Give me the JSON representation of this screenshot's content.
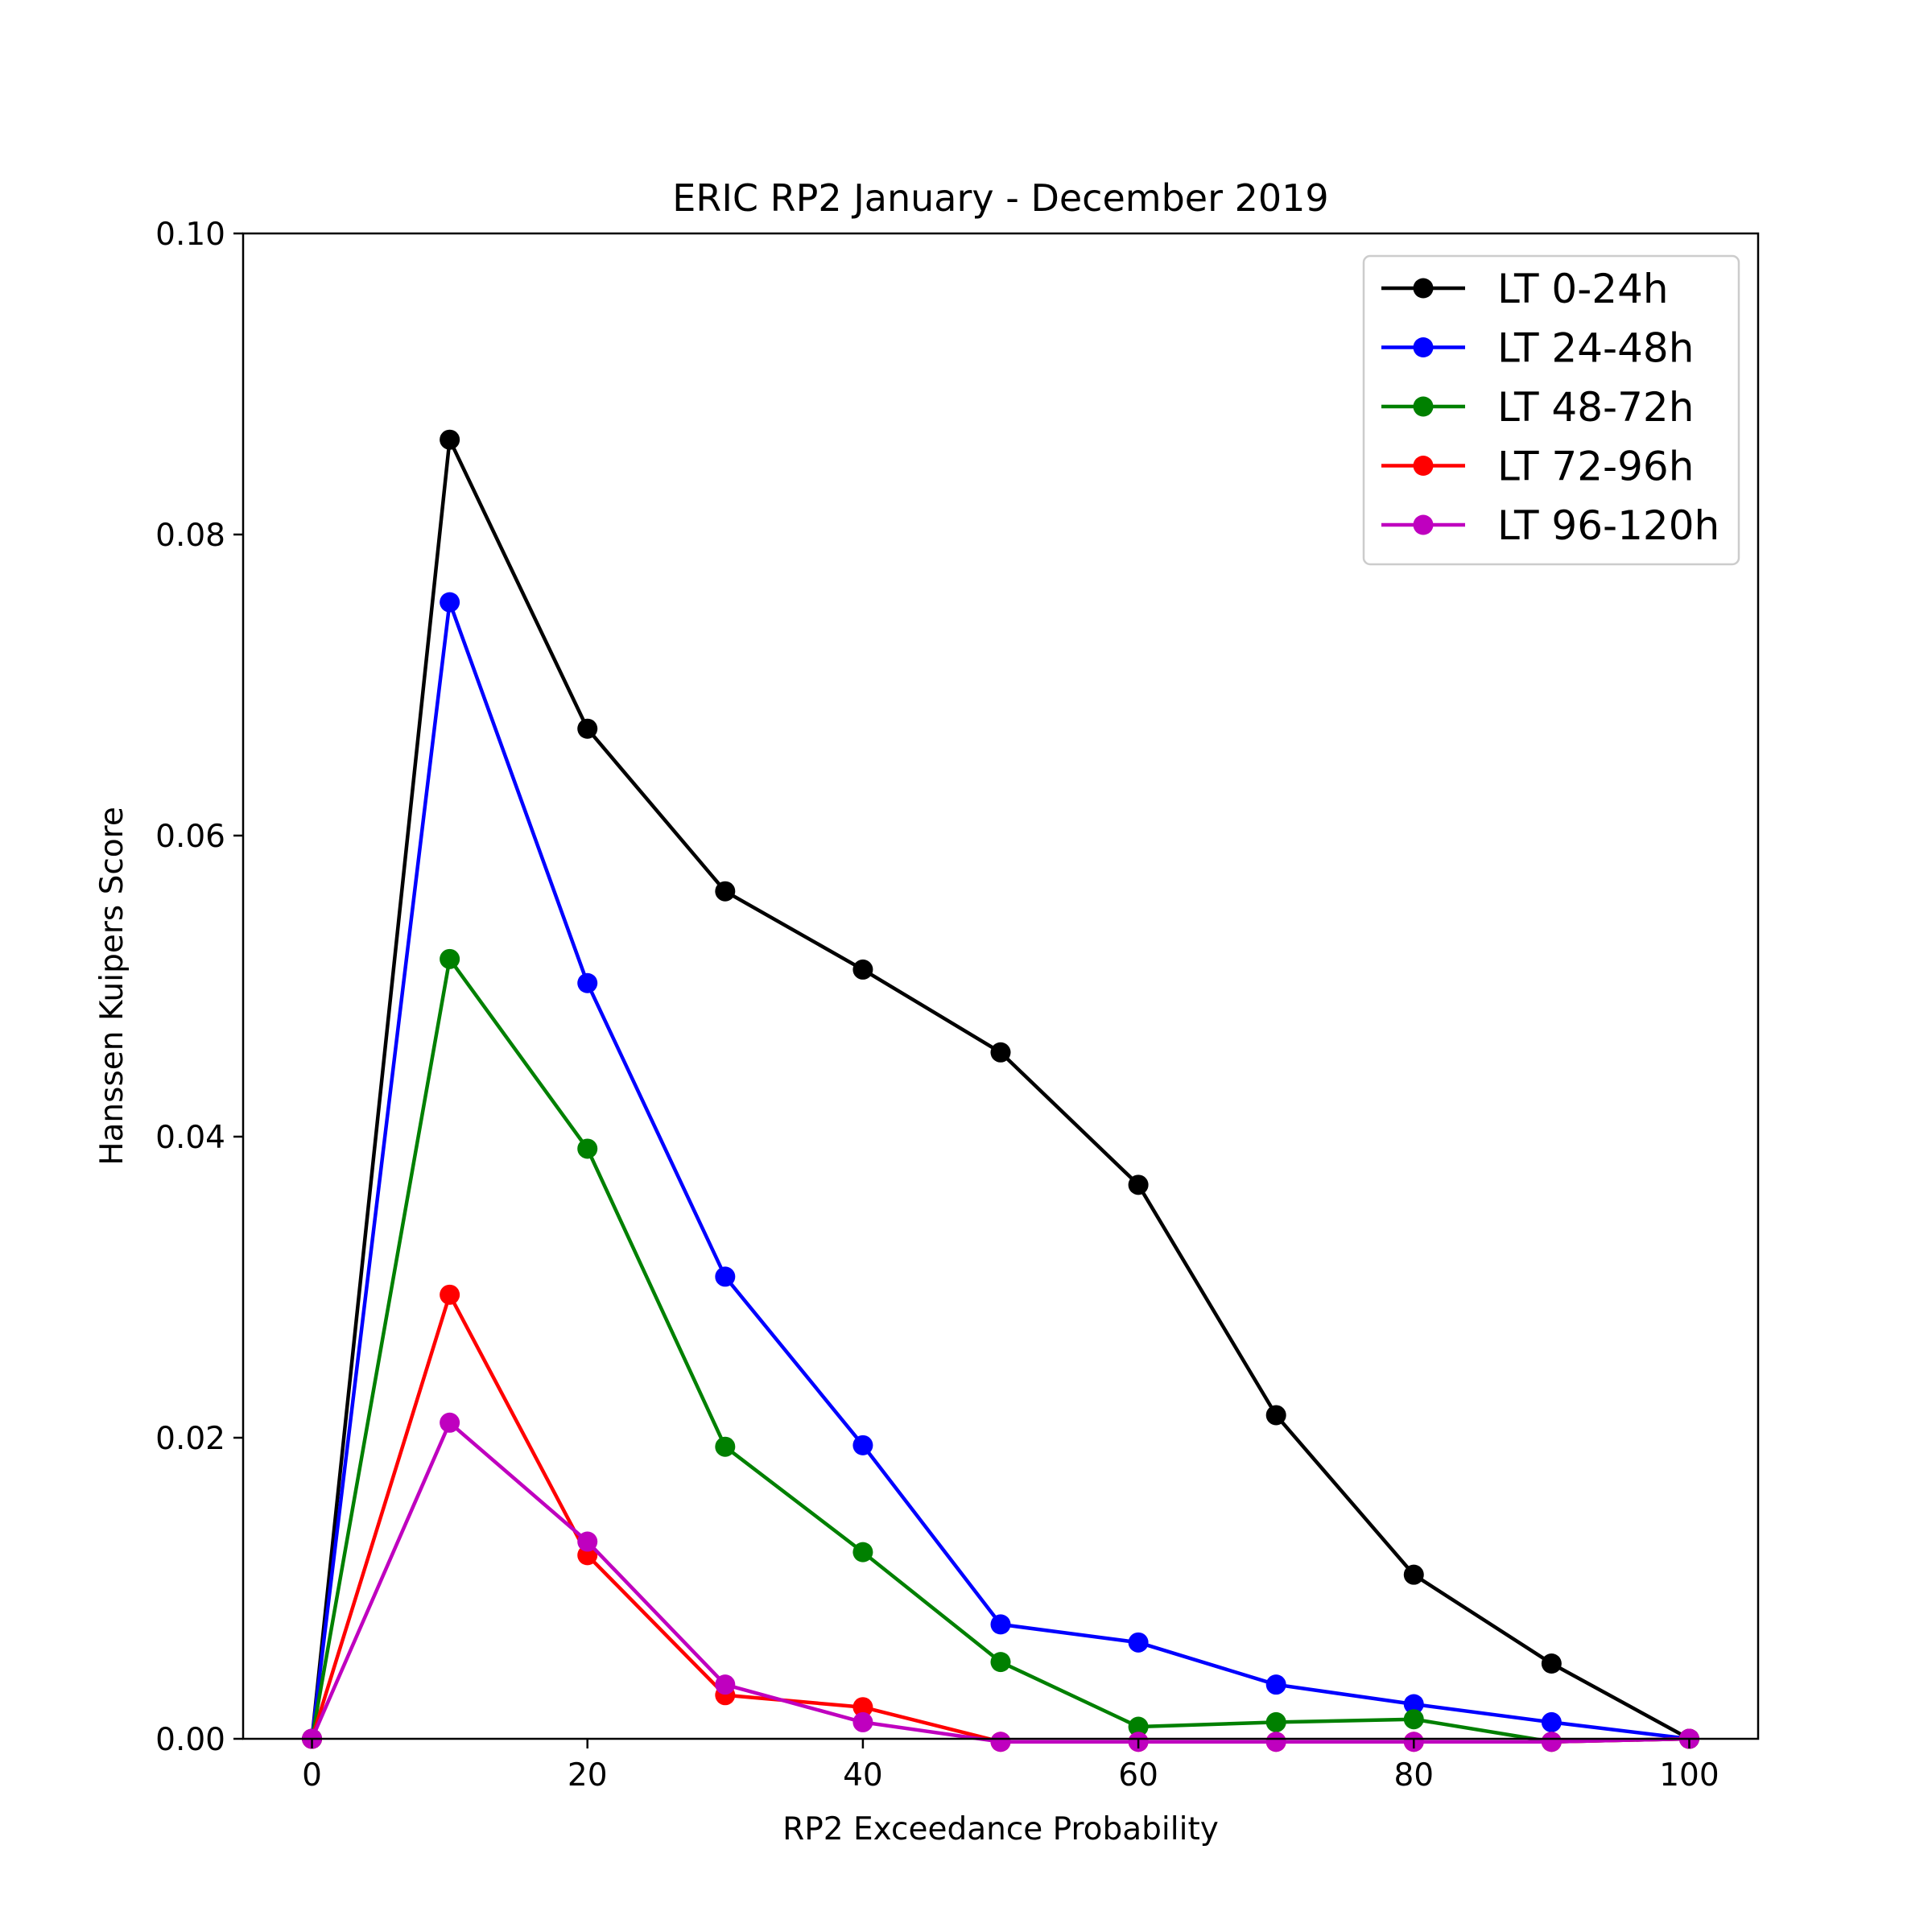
{
  "chart_data": {
    "type": "line",
    "title": "ERIC  RP2 January - December 2019",
    "xlabel": "RP2 Exceedance Probability",
    "ylabel": "Hanssen Kuipers Score",
    "xlim": [
      -5,
      105
    ],
    "ylim": [
      0.0,
      0.1
    ],
    "xticks": [
      0,
      20,
      40,
      60,
      80,
      100
    ],
    "xtick_labels": [
      "0",
      "20",
      "40",
      "60",
      "80",
      "100"
    ],
    "yticks": [
      0.0,
      0.02,
      0.04,
      0.06,
      0.08,
      0.1
    ],
    "ytick_labels": [
      "0.00",
      "0.02",
      "0.04",
      "0.06",
      "0.08",
      "0.10"
    ],
    "grid": false,
    "legend_position": "top-right",
    "x": [
      0,
      10,
      20,
      30,
      40,
      50,
      60,
      70,
      80,
      90,
      100
    ],
    "series": [
      {
        "name": "LT 0-24h",
        "color": "#000000",
        "values": [
          0.0,
          0.0863,
          0.0671,
          0.0563,
          0.0511,
          0.0456,
          0.0368,
          0.0215,
          0.0109,
          0.005,
          0.0
        ]
      },
      {
        "name": "LT 24-48h",
        "color": "#0000ff",
        "values": [
          0.0,
          0.0755,
          0.0502,
          0.0307,
          0.0195,
          0.0076,
          0.0064,
          0.0036,
          0.0023,
          0.0011,
          0.0
        ]
      },
      {
        "name": "LT 48-72h",
        "color": "#008000",
        "values": [
          0.0,
          0.0518,
          0.0392,
          0.0194,
          0.0124,
          0.0051,
          0.0008,
          0.0011,
          0.0013,
          -0.0002,
          0.0
        ]
      },
      {
        "name": "LT 72-96h",
        "color": "#ff0000",
        "values": [
          0.0,
          0.0295,
          0.0122,
          0.0029,
          0.0021,
          -0.0002,
          -0.0002,
          -0.0002,
          -0.0002,
          -0.0002,
          0.0
        ]
      },
      {
        "name": "LT 96-120h",
        "color": "#bf00bf",
        "values": [
          0.0,
          0.021,
          0.0131,
          0.0036,
          0.0011,
          -0.0002,
          -0.0002,
          -0.0002,
          -0.0002,
          -0.0002,
          0.0
        ]
      }
    ]
  }
}
